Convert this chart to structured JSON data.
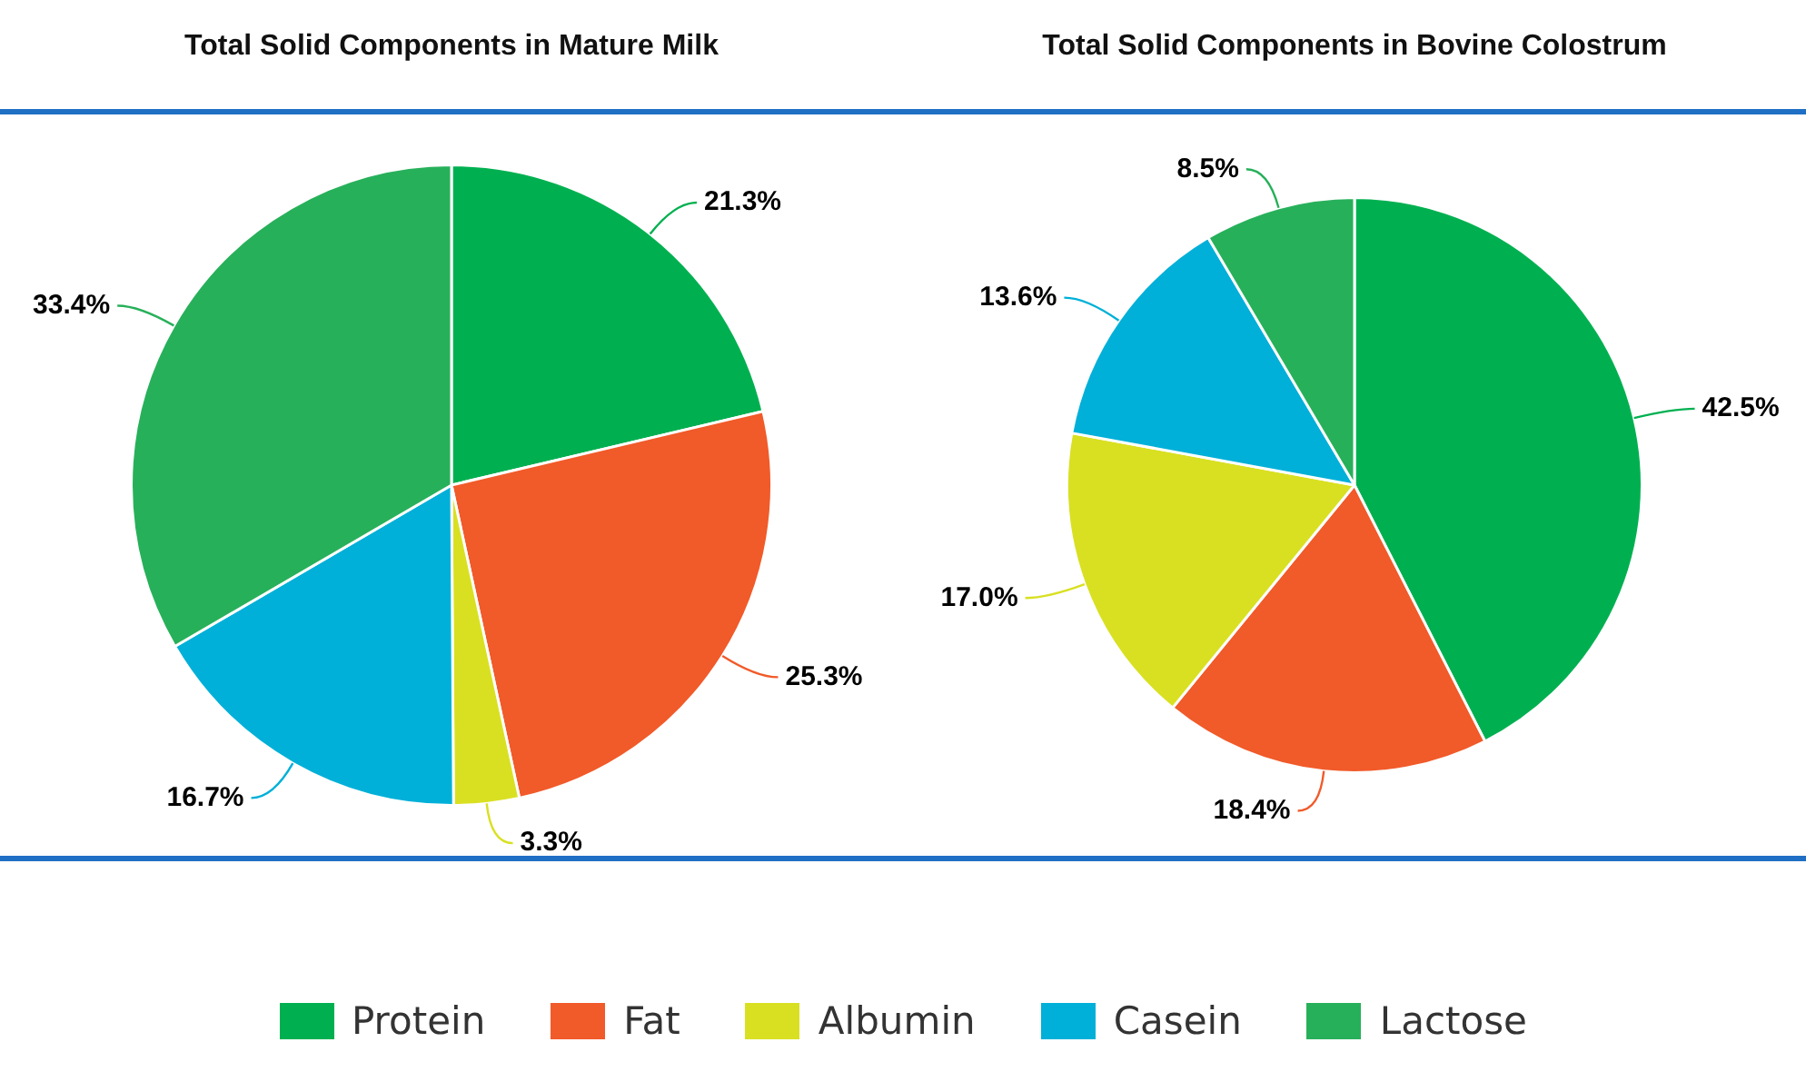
{
  "chart_data": [
    {
      "type": "pie",
      "title": "Total Solid Components in Mature Milk",
      "categories": [
        "Protein",
        "Fat",
        "Albumin",
        "Casein",
        "Lactose"
      ],
      "values": [
        21.3,
        25.3,
        3.3,
        16.7,
        33.4
      ],
      "value_labels": [
        "21.3%",
        "25.3%",
        "3.3%",
        "16.7%",
        "33.4%"
      ],
      "colors": [
        "#00b050",
        "#f15a29",
        "#d9e021",
        "#00b0d8",
        "#27b05a"
      ],
      "legend": "bottom"
    },
    {
      "type": "pie",
      "title": "Total Solid Components in Bovine Colostrum",
      "categories": [
        null,
        null,
        null,
        null,
        null
      ],
      "values": [
        42.5,
        18.4,
        17.0,
        13.6,
        8.5
      ],
      "value_labels": [
        "42.5%",
        "18.4%",
        "17.0%",
        "13.6%",
        "8.5%"
      ],
      "colors": [
        "#00b050",
        "#f15a29",
        "#d9e021",
        "#00b0d8",
        "#27b05a"
      ]
    }
  ]
}
